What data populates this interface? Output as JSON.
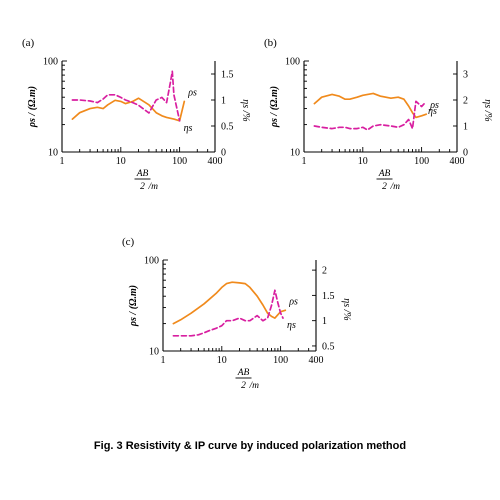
{
  "caption": "Fig. 3 Resistivity & IP curve by induced polarization method",
  "chart_data": [
    {
      "type": "line",
      "panel": "(a)",
      "x_scale": "log",
      "y_left_scale": "log",
      "x_ticks": [
        "1",
        "10",
        "100",
        "400"
      ],
      "xlabel": "AB/2/m",
      "xlabel_num": "AB",
      "xlabel_den": "2",
      "xlabel_unit": "/m",
      "ylabel_left": "ρs / (Ω.m)",
      "ylabel_right": "ηs /%",
      "y_left_ticks": [
        "10",
        "100"
      ],
      "y_right_ticks": [
        "0",
        "0.5",
        "1",
        "1.5"
      ],
      "xlim": [
        1,
        400
      ],
      "ylim_left": [
        10,
        100
      ],
      "ylim_right": [
        0,
        1.75
      ],
      "series": [
        {
          "name": "ρs",
          "axis": "left",
          "color": "#f08a1c",
          "style": "solid",
          "x": [
            1.5,
            2,
            3,
            4,
            5,
            6,
            8,
            10,
            12,
            16,
            20,
            30,
            40,
            50,
            60,
            80,
            100,
            120
          ],
          "y": [
            23,
            27,
            30,
            31,
            30,
            33,
            37,
            36,
            34,
            36,
            39,
            33,
            27,
            25,
            24,
            23,
            22,
            36
          ]
        },
        {
          "name": "ηs",
          "axis": "right",
          "color": "#d81fa0",
          "style": "dashed",
          "x": [
            1.5,
            2,
            3,
            4,
            5,
            6,
            8,
            10,
            12,
            16,
            20,
            30,
            40,
            50,
            60,
            70,
            75,
            80,
            100
          ],
          "y": [
            1.0,
            1.0,
            0.98,
            0.95,
            1.02,
            1.1,
            1.1,
            1.05,
            1.0,
            0.95,
            0.9,
            0.75,
            1.0,
            1.05,
            0.95,
            1.35,
            1.55,
            1.1,
            0.6
          ]
        }
      ]
    },
    {
      "type": "line",
      "panel": "(b)",
      "x_scale": "log",
      "y_left_scale": "log",
      "x_ticks": [
        "1",
        "10",
        "100",
        "400"
      ],
      "xlabel": "AB/2/m",
      "xlabel_num": "AB",
      "xlabel_den": "2",
      "xlabel_unit": "/m",
      "ylabel_left": "ρs / (Ω.m)",
      "ylabel_right": "ηs /%",
      "y_left_ticks": [
        "10",
        "100"
      ],
      "y_right_ticks": [
        "0",
        "1",
        "2",
        "3"
      ],
      "xlim": [
        1,
        400
      ],
      "ylim_left": [
        10,
        100
      ],
      "ylim_right": [
        0,
        3.5
      ],
      "series": [
        {
          "name": "ρs",
          "axis": "left",
          "color": "#f08a1c",
          "style": "solid",
          "x": [
            1.5,
            2,
            3,
            4,
            5,
            6,
            8,
            10,
            15,
            20,
            30,
            40,
            50,
            60,
            70,
            80,
            100,
            120
          ],
          "y": [
            34,
            40,
            43,
            41,
            38,
            38,
            40,
            42,
            44,
            41,
            39,
            40,
            38,
            32,
            27,
            24,
            25,
            26
          ]
        },
        {
          "name": "ηs",
          "axis": "right",
          "color": "#d81fa0",
          "style": "dashed",
          "x": [
            1.5,
            2,
            3,
            4,
            5,
            6,
            8,
            10,
            12,
            15,
            20,
            30,
            40,
            50,
            60,
            70,
            80,
            100,
            110
          ],
          "y": [
            1.0,
            0.95,
            0.9,
            0.95,
            0.95,
            0.9,
            0.9,
            0.95,
            0.85,
            1.0,
            1.05,
            1.0,
            0.95,
            1.05,
            1.25,
            0.9,
            1.95,
            1.75,
            1.85
          ]
        }
      ]
    },
    {
      "type": "line",
      "panel": "(c)",
      "x_scale": "log",
      "y_left_scale": "log",
      "x_ticks": [
        "1",
        "10",
        "100",
        "400"
      ],
      "xlabel": "AB/2/m",
      "xlabel_num": "AB",
      "xlabel_den": "2",
      "xlabel_unit": "/m",
      "ylabel_left": "ρs / (Ω.m)",
      "ylabel_right": "ηs /%",
      "y_left_ticks": [
        "10",
        "100"
      ],
      "y_right_ticks": [
        "0.5",
        "1",
        "1.5",
        "2"
      ],
      "xlim": [
        1,
        400
      ],
      "ylim_left": [
        10,
        100
      ],
      "ylim_right": [
        0.4,
        2.2
      ],
      "series": [
        {
          "name": "ρs",
          "axis": "left",
          "color": "#f08a1c",
          "style": "solid",
          "x": [
            1.5,
            2,
            3,
            5,
            8,
            10,
            12,
            15,
            20,
            25,
            30,
            40,
            50,
            60,
            70,
            80,
            100,
            120
          ],
          "y": [
            20,
            22,
            26,
            33,
            43,
            50,
            55,
            57,
            56,
            55,
            50,
            40,
            32,
            26,
            24,
            23,
            27,
            28
          ]
        },
        {
          "name": "ηs",
          "axis": "right",
          "color": "#d81fa0",
          "style": "dashed",
          "x": [
            1.5,
            2,
            3,
            4,
            5,
            6,
            8,
            10,
            12,
            15,
            20,
            25,
            30,
            40,
            50,
            60,
            70,
            80,
            90,
            100,
            110
          ],
          "y": [
            0.7,
            0.7,
            0.7,
            0.72,
            0.76,
            0.8,
            0.85,
            0.9,
            1.0,
            1.0,
            1.05,
            1.0,
            1.0,
            1.1,
            1.0,
            1.05,
            1.3,
            1.6,
            1.35,
            1.15,
            1.05
          ]
        }
      ]
    }
  ]
}
